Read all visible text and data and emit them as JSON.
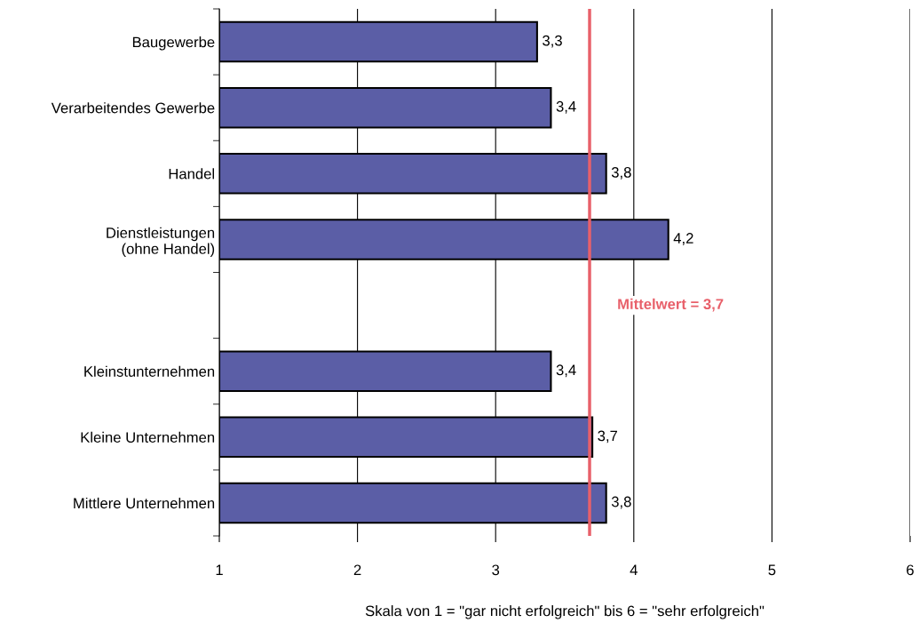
{
  "chart_data": {
    "type": "bar",
    "orientation": "horizontal",
    "categories": [
      "Baugewerbe",
      "Verarbeitendes Gewerbe",
      "Handel",
      "Dienstleistungen\n(ohne Handel)",
      null,
      "Kleinstunternehmen",
      "Kleine Unternehmen",
      "Mittlere Unternehmen"
    ],
    "values": [
      3.3,
      3.4,
      3.8,
      4.25,
      null,
      3.4,
      3.7,
      3.8
    ],
    "value_labels": [
      "3,3",
      "3,4",
      "3,8",
      "4,2",
      null,
      "3,4",
      "3,7",
      "3,8"
    ],
    "color": "#5b5ea6",
    "xlim": [
      1,
      6
    ],
    "xticks": [
      1,
      2,
      3,
      4,
      5,
      6
    ],
    "xlabel": "Skala von 1 = \"gar nicht erfolgreich\" bis 6 = \"sehr erfolgreich\"",
    "grid": "x",
    "ref_lines": [
      {
        "axis": "x",
        "value": 3.68,
        "label": "Mittelwert = 3,7",
        "color": "#e8606a"
      }
    ]
  }
}
